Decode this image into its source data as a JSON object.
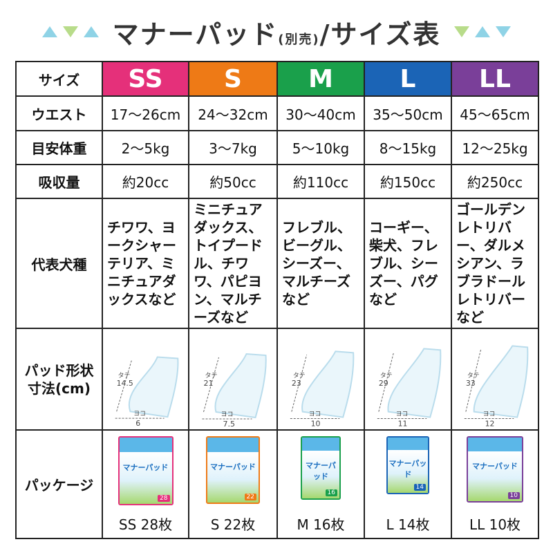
{
  "title": {
    "main": "マナーパッド",
    "sub": "(別売)",
    "rest": "/サイズ表"
  },
  "colors": {
    "SS": "#e5307a",
    "S": "#ee7a16",
    "M": "#1aa04b",
    "L": "#1b64b6",
    "LL": "#7a3f99"
  },
  "rows": {
    "size": "サイズ",
    "waist": "ウエスト",
    "weight": "目安体重",
    "absorb": "吸収量",
    "breed": "代表犬種",
    "shape": "パッド形状寸法(cm)",
    "package": "パッケージ"
  },
  "sizes": [
    {
      "name": "SS",
      "waist": "17〜26cm",
      "weight": "2〜5kg",
      "absorb": "約20cc",
      "breed": "チワワ、ヨークシャーテリア、ミニチュアダックスなど",
      "tate": "14.5",
      "yoko": "6",
      "package": "SS 28枚",
      "count": "28",
      "package_name": "マナーパッド"
    },
    {
      "name": "S",
      "waist": "24〜32cm",
      "weight": "3〜7kg",
      "absorb": "約50cc",
      "breed": "ミニチュアダックス、トイプードル、チワワ、パピヨン、マルチーズなど",
      "tate": "21",
      "yoko": "7.5",
      "package": "S 22枚",
      "count": "22",
      "package_name": "マナーパッド"
    },
    {
      "name": "M",
      "waist": "30〜40cm",
      "weight": "5〜10kg",
      "absorb": "約110cc",
      "breed": "フレブル、ビーグル、シーズー、マルチーズなど",
      "tate": "23",
      "yoko": "10",
      "package": "M 16枚",
      "count": "16",
      "package_name": "マナーパッド"
    },
    {
      "name": "L",
      "waist": "35〜50cm",
      "weight": "8〜15kg",
      "absorb": "約150cc",
      "breed": "コーギー、柴犬、フレブル、シーズー、パグなど",
      "tate": "29",
      "yoko": "11",
      "package": "L 14枚",
      "count": "14",
      "package_name": "マナーパッド"
    },
    {
      "name": "LL",
      "waist": "45〜65cm",
      "weight": "12〜25kg",
      "absorb": "約250cc",
      "breed": "ゴールデンレトリバー、ダルメシアン、ラブラドールレトリバーなど",
      "tate": "33",
      "yoko": "12",
      "package": "LL 10枚",
      "count": "10",
      "package_name": "マナーパッド"
    }
  ],
  "labels": {
    "tate": "タテ",
    "yoko": "ヨコ"
  }
}
